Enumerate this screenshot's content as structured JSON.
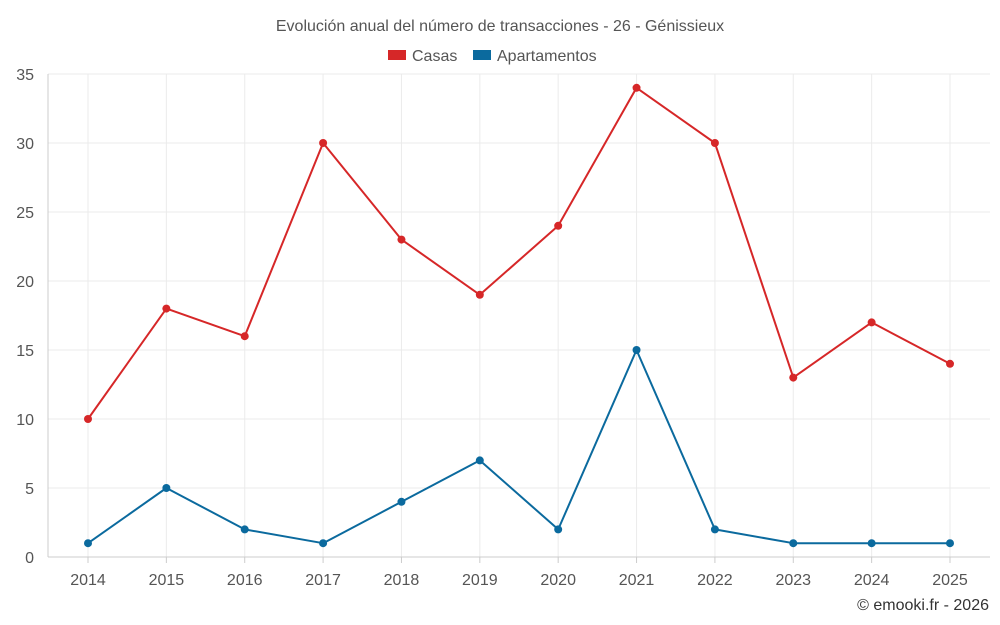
{
  "chart_data": {
    "type": "line",
    "title": "Evolución anual del número de transacciones - 26 - Génissieux",
    "categories": [
      "2014",
      "2015",
      "2016",
      "2017",
      "2018",
      "2019",
      "2020",
      "2021",
      "2022",
      "2023",
      "2024",
      "2025"
    ],
    "series": [
      {
        "name": "Casas",
        "color": "#d62728",
        "values": [
          10,
          18,
          16,
          30,
          23,
          19,
          24,
          34,
          30,
          13,
          17,
          14
        ]
      },
      {
        "name": "Apartamentos",
        "color": "#0b6a9e",
        "values": [
          1,
          5,
          2,
          1,
          4,
          7,
          2,
          15,
          2,
          1,
          1,
          1
        ]
      }
    ],
    "ylim": [
      0,
      35
    ],
    "yticks": [
      0,
      5,
      10,
      15,
      20,
      25,
      30,
      35
    ],
    "xlabel": "",
    "ylabel": "",
    "grid": true,
    "legend": "top-center",
    "credit": "© emooki.fr - 2026"
  }
}
